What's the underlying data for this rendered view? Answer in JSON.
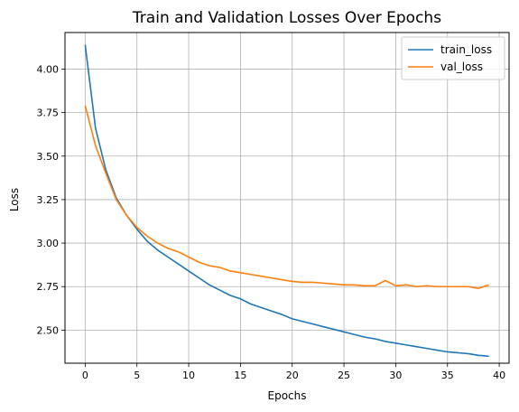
{
  "chart_data": {
    "type": "line",
    "title": "Train and Validation Losses Over Epochs",
    "xlabel": "Epochs",
    "ylabel": "Loss",
    "xlim": [
      -1.95,
      40.95
    ],
    "ylim": [
      2.31,
      4.21
    ],
    "xticks": [
      0,
      5,
      10,
      15,
      20,
      25,
      30,
      35,
      40
    ],
    "yticks": [
      2.5,
      2.75,
      3.0,
      3.25,
      3.5,
      3.75,
      4.0
    ],
    "ytick_labels": [
      "2.50",
      "2.75",
      "3.00",
      "3.25",
      "3.50",
      "3.75",
      "4.00"
    ],
    "grid": true,
    "legend_position": "top-right",
    "x": [
      0,
      1,
      2,
      3,
      4,
      5,
      6,
      7,
      8,
      9,
      10,
      11,
      12,
      13,
      14,
      15,
      16,
      17,
      18,
      19,
      20,
      21,
      22,
      23,
      24,
      25,
      26,
      27,
      28,
      29,
      30,
      31,
      32,
      33,
      34,
      35,
      36,
      37,
      38,
      39
    ],
    "series": [
      {
        "name": "train_loss",
        "color": "#1f77b4",
        "values": [
          4.14,
          3.66,
          3.42,
          3.26,
          3.16,
          3.08,
          3.01,
          2.96,
          2.92,
          2.88,
          2.84,
          2.8,
          2.76,
          2.73,
          2.7,
          2.68,
          2.65,
          2.63,
          2.61,
          2.59,
          2.565,
          2.55,
          2.535,
          2.52,
          2.505,
          2.49,
          2.475,
          2.46,
          2.45,
          2.435,
          2.425,
          2.415,
          2.405,
          2.395,
          2.385,
          2.375,
          2.37,
          2.365,
          2.355,
          2.35
        ]
      },
      {
        "name": "val_loss",
        "color": "#ff7f0e",
        "values": [
          3.79,
          3.56,
          3.4,
          3.25,
          3.16,
          3.09,
          3.04,
          3.0,
          2.97,
          2.95,
          2.92,
          2.89,
          2.87,
          2.86,
          2.84,
          2.83,
          2.82,
          2.81,
          2.8,
          2.79,
          2.78,
          2.775,
          2.775,
          2.77,
          2.765,
          2.76,
          2.76,
          2.755,
          2.755,
          2.785,
          2.755,
          2.76,
          2.75,
          2.755,
          2.75,
          2.75,
          2.75,
          2.75,
          2.74,
          2.76
        ]
      }
    ]
  }
}
